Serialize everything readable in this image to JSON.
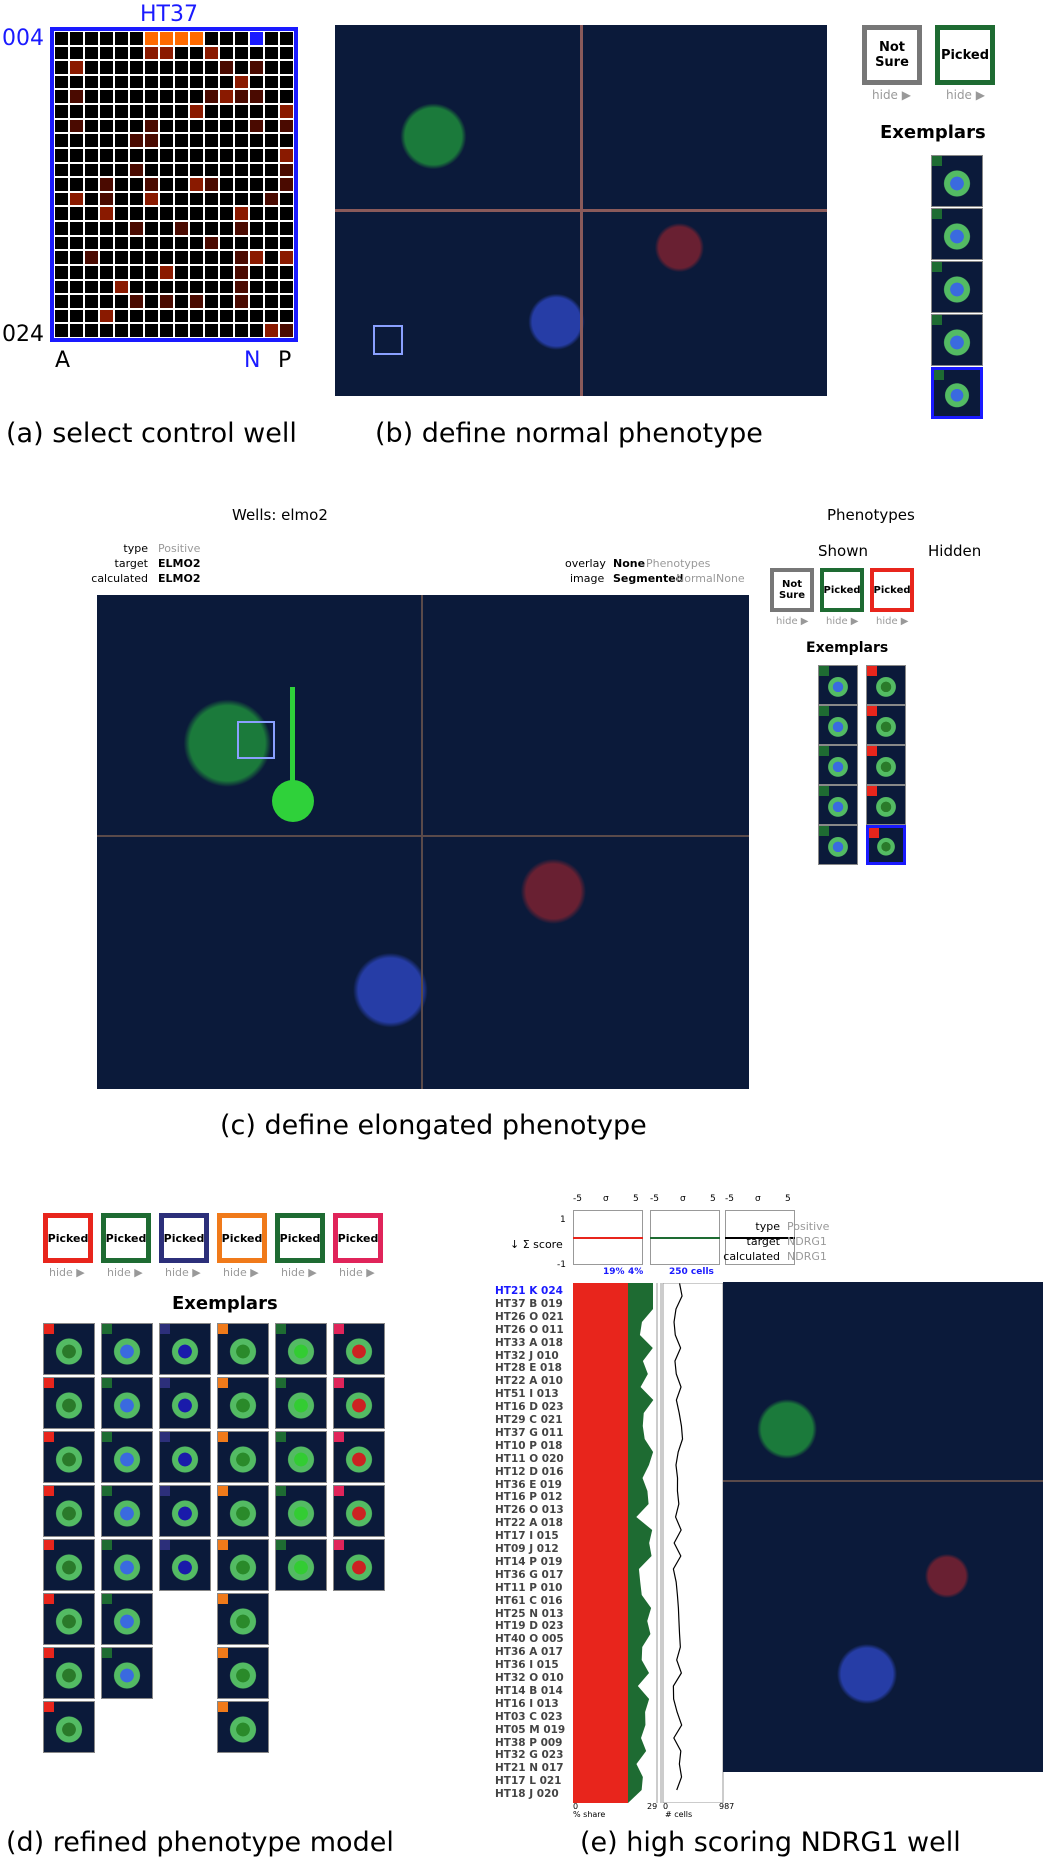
{
  "panel_a": {
    "plate": "HT37",
    "row_top": "004",
    "row_bottom": "024",
    "col_left": "A",
    "col_selected": "N",
    "col_right": "P",
    "caption": "(a) select control well",
    "highlight_color": "#1a1aff",
    "heat_color": "#ff6a00"
  },
  "panel_b": {
    "caption": "(b) define normal phenotype",
    "btn_notsure": "Not Sure",
    "btn_picked": "Picked",
    "hide1": "hide ▶",
    "hide2": "hide ▶",
    "exemplars_title": "Exemplars"
  },
  "panel_c": {
    "title": "Wells: elmo2",
    "type_label": "type",
    "type_value": "Positive",
    "target_label": "target",
    "target_value": "ELMO2",
    "calc_label": "calculated",
    "calc_value": "ELMO2",
    "overlay_label": "overlay",
    "overlay_opt1": "None",
    "overlay_opt2": "Phenotypes",
    "image_label": "image",
    "image_opt1": "Segmented",
    "image_opt2": "Normal",
    "image_opt3": "None",
    "phenotypes_title": "Phenotypes",
    "shown_label": "Shown",
    "hidden_label": "Hidden",
    "btn_notsure": "Not Sure",
    "btn_picked1": "Picked",
    "btn_picked2": "Picked",
    "hide1": "hide ▶",
    "hide2": "hide ▶",
    "hide3": "hide ▶",
    "exemplars_title": "Exemplars",
    "caption": "(c) define elongated phenotype"
  },
  "panel_d": {
    "buttons": [
      {
        "label": "Picked",
        "color": "#e8251c"
      },
      {
        "label": "Picked",
        "color": "#1e6b32"
      },
      {
        "label": "Picked",
        "color": "#2c2f7a"
      },
      {
        "label": "Picked",
        "color": "#f07a1a"
      },
      {
        "label": "Picked",
        "color": "#1e6b32"
      },
      {
        "label": "Picked",
        "color": "#e0245a"
      }
    ],
    "hide_label": "hide ▶",
    "exemplars_title": "Exemplars",
    "caption": "(d) refined phenotype model"
  },
  "panel_e": {
    "axis_ticks_1": [
      "-5",
      "σ",
      "5"
    ],
    "axis_ticks_2": [
      "-5",
      "σ",
      "5"
    ],
    "axis_ticks_3": [
      "-5",
      "σ",
      "5"
    ],
    "y_top": "1",
    "y_bottom": "-1",
    "score_label": "↓ Σ score",
    "pct1": "19%",
    "pct2": "4%",
    "cells": "250 cells",
    "type_label": "type",
    "type_value": "Positive",
    "target_label": "target",
    "target_value": "NDRG1",
    "calc_label": "calculated",
    "calc_value": "NDRG1",
    "rows": [
      "HT21  K  024",
      "HT37  B  019",
      "HT26  O  021",
      "HT26  O  011",
      "HT33  A  018",
      "HT32  J  010",
      "HT28  E  018",
      "HT22  A  010",
      "HT51  I  013",
      "HT16  D  023",
      "HT29  C  021",
      "HT37  G  011",
      "HT10  P  018",
      "HT11  O  020",
      "HT12  D  016",
      "HT36  E  019",
      "HT16  P  012",
      "HT26  O  013",
      "HT22  A  018",
      "HT17  I  015",
      "HT09  J  012",
      "HT14  P  019",
      "HT36  G  017",
      "HT11  P  010",
      "HT61  C  016",
      "HT25  N  013",
      "HT19  D  023",
      "HT40  O  005",
      "HT36  A  017",
      "HT36  I  015",
      "HT32  O  010",
      "HT14  B  014",
      "HT16  I  013",
      "HT03  C  023",
      "HT05  M  019",
      "HT38  P  009",
      "HT32  G  023",
      "HT21  N  017",
      "HT17  L  021",
      "HT18  J  020"
    ],
    "bottom_0": "0",
    "bottom_share": "% share",
    "bottom_29": "29",
    "bottom_0b": "0",
    "bottom_cells": "# cells",
    "bottom_987": "987",
    "caption": "(e) high scoring NDRG1 well"
  }
}
